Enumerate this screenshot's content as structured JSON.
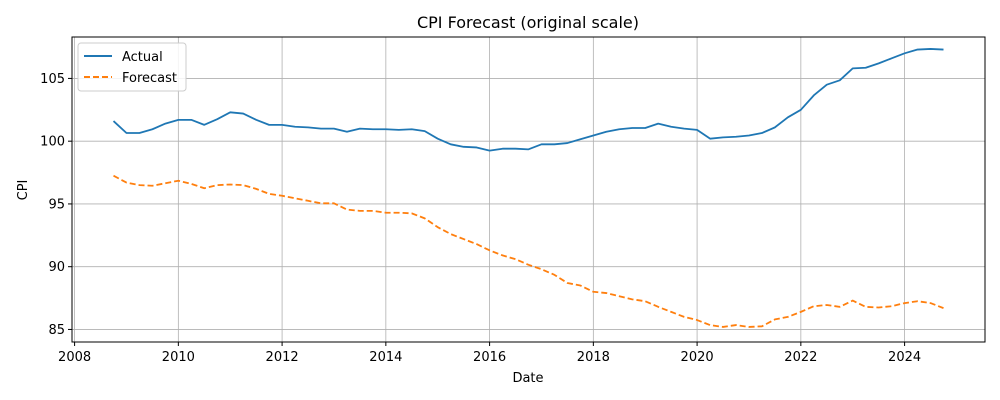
{
  "chart_data": {
    "type": "line",
    "title": "CPI Forecast (original scale)",
    "xlabel": "Date",
    "ylabel": "CPI",
    "xlim": [
      2007.95,
      2025.55
    ],
    "ylim": [
      84.0,
      108.3
    ],
    "x_ticks": [
      2008,
      2010,
      2012,
      2014,
      2016,
      2018,
      2020,
      2022,
      2024
    ],
    "x_tick_labels": [
      "2008",
      "2010",
      "2012",
      "2014",
      "2016",
      "2018",
      "2020",
      "2022",
      "2024"
    ],
    "y_ticks": [
      85,
      90,
      95,
      100,
      105
    ],
    "y_tick_labels": [
      "85",
      "90",
      "95",
      "100",
      "105"
    ],
    "grid": true,
    "legend_position": "top-left",
    "x": [
      2008.75,
      2009.0,
      2009.25,
      2009.5,
      2009.75,
      2010.0,
      2010.25,
      2010.5,
      2010.75,
      2011.0,
      2011.25,
      2011.5,
      2011.75,
      2012.0,
      2012.25,
      2012.5,
      2012.75,
      2013.0,
      2013.25,
      2013.5,
      2013.75,
      2014.0,
      2014.25,
      2014.5,
      2014.75,
      2015.0,
      2015.25,
      2015.5,
      2015.75,
      2016.0,
      2016.25,
      2016.5,
      2016.75,
      2017.0,
      2017.25,
      2017.5,
      2017.75,
      2018.0,
      2018.25,
      2018.5,
      2018.75,
      2019.0,
      2019.25,
      2019.5,
      2019.75,
      2020.0,
      2020.25,
      2020.5,
      2020.75,
      2021.0,
      2021.25,
      2021.5,
      2021.75,
      2022.0,
      2022.25,
      2022.5,
      2022.75,
      2023.0,
      2023.25,
      2023.5,
      2023.75,
      2024.0,
      2024.25,
      2024.5,
      2024.75
    ],
    "series": [
      {
        "name": "Actual",
        "color": "#1f77b4",
        "style": "solid",
        "values": [
          101.6,
          100.65,
          100.65,
          100.95,
          101.4,
          101.7,
          101.7,
          101.3,
          101.75,
          102.3,
          102.2,
          101.7,
          101.3,
          101.3,
          101.15,
          101.1,
          101.0,
          101.0,
          100.75,
          101.0,
          100.95,
          100.95,
          100.9,
          100.95,
          100.8,
          100.2,
          99.75,
          99.55,
          99.5,
          99.25,
          99.4,
          99.4,
          99.35,
          99.75,
          99.75,
          99.85,
          100.15,
          100.45,
          100.75,
          100.95,
          101.05,
          101.05,
          101.4,
          101.15,
          101.0,
          100.9,
          100.2,
          100.3,
          100.35,
          100.45,
          100.65,
          101.1,
          101.9,
          102.5,
          103.65,
          104.5,
          104.85,
          105.8,
          105.85,
          106.2,
          106.6,
          107.0,
          107.3,
          107.35,
          107.3
        ]
      },
      {
        "name": "Forecast",
        "color": "#ff7f0e",
        "style": "dashed",
        "values": [
          97.25,
          96.7,
          96.5,
          96.45,
          96.65,
          96.85,
          96.6,
          96.25,
          96.5,
          96.55,
          96.5,
          96.2,
          95.8,
          95.65,
          95.45,
          95.25,
          95.05,
          95.05,
          94.55,
          94.45,
          94.45,
          94.3,
          94.3,
          94.25,
          93.85,
          93.15,
          92.6,
          92.2,
          91.8,
          91.3,
          90.9,
          90.6,
          90.15,
          89.8,
          89.35,
          88.7,
          88.5,
          88.0,
          87.9,
          87.65,
          87.4,
          87.25,
          86.8,
          86.4,
          86.0,
          85.75,
          85.35,
          85.2,
          85.35,
          85.2,
          85.25,
          85.8,
          86.0,
          86.4,
          86.85,
          86.95,
          86.8,
          87.3,
          86.8,
          86.75,
          86.85,
          87.1,
          87.25,
          87.1,
          86.7
        ]
      }
    ]
  }
}
